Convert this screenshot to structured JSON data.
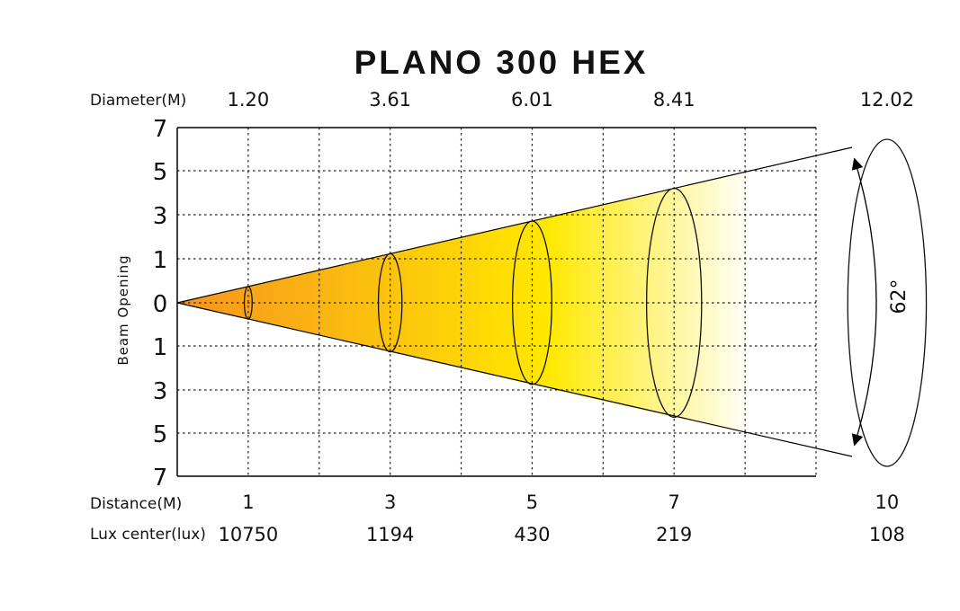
{
  "chart_data": {
    "type": "line",
    "title": "PLANO 300 HEX",
    "diameter_label": "Diameter(M)",
    "distance_label": "Distance(M)",
    "lux_label": "Lux center(lux)",
    "ylabel": "Beam  Opening",
    "y_ticks": [
      "7",
      "5",
      "3",
      "1",
      "0",
      "1",
      "3",
      "5",
      "7"
    ],
    "beam_angle": "62°",
    "points": [
      {
        "distance": "1",
        "diameter": "1.20",
        "lux": "10750"
      },
      {
        "distance": "3",
        "diameter": "3.61",
        "lux": "1194"
      },
      {
        "distance": "5",
        "diameter": "6.01",
        "lux": "430"
      },
      {
        "distance": "7",
        "diameter": "8.41",
        "lux": "219"
      },
      {
        "distance": "10",
        "diameter": "12.02",
        "lux": "108"
      }
    ],
    "grid": true,
    "colors": {
      "near": "#f7941d",
      "mid": "#ffe800",
      "far": "#ffffff"
    }
  }
}
